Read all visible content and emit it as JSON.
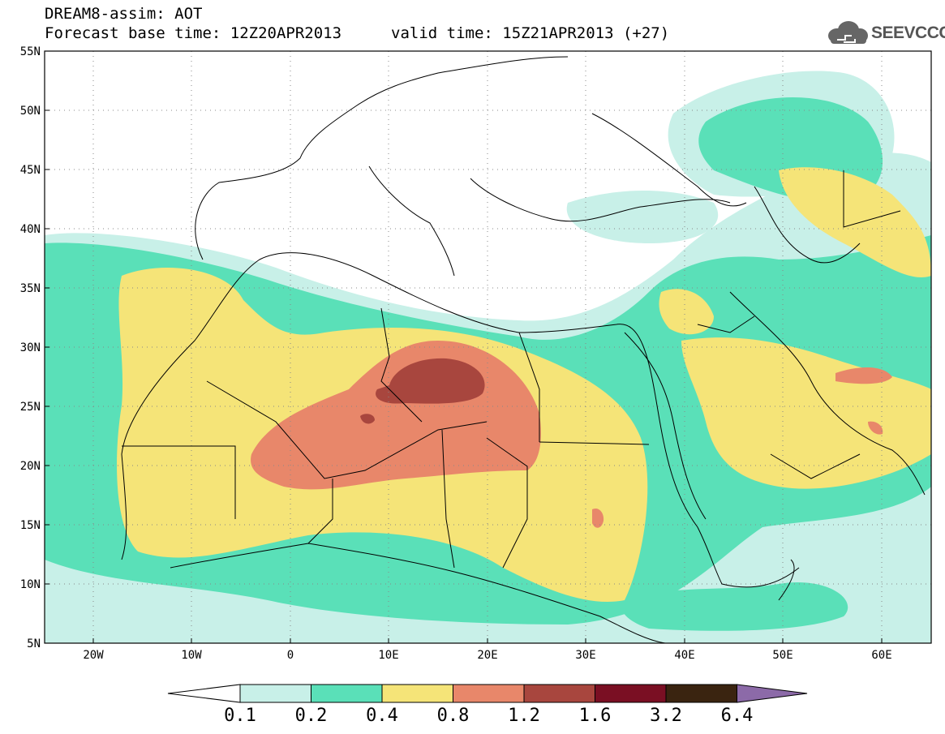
{
  "title": {
    "line1": "DREAM8-assim: AOT",
    "line2": "Forecast base time: 12Z20APR2013",
    "valid": "valid time: 15Z21APR2013 (+27)"
  },
  "logo": {
    "text": "SEEVCCC",
    "icon": "cloud-icon"
  },
  "axes": {
    "lat_labels": [
      "55N",
      "50N",
      "45N",
      "40N",
      "35N",
      "30N",
      "25N",
      "20N",
      "15N",
      "10N",
      "5N"
    ],
    "lon_labels": [
      "20W",
      "10W",
      "0",
      "10E",
      "20E",
      "30E",
      "40E",
      "50E",
      "60E"
    ]
  },
  "colorbar": {
    "labels": [
      "0.1",
      "0.2",
      "0.4",
      "0.8",
      "1.2",
      "1.6",
      "3.2",
      "6.4"
    ],
    "colors": [
      "#ffffff",
      "#c8f0e8",
      "#5ae0b8",
      "#f5e478",
      "#e8876a",
      "#a8463e",
      "#7a0f23",
      "#3a2410",
      "#8c6aa8"
    ]
  },
  "chart_data": {
    "type": "heatmap",
    "variable": "AOT",
    "lon_range": [
      -25,
      65
    ],
    "lat_range": [
      5,
      55
    ],
    "levels": [
      0.1,
      0.2,
      0.4,
      0.8,
      1.2,
      1.6,
      3.2,
      6.4
    ],
    "grid": true
  }
}
